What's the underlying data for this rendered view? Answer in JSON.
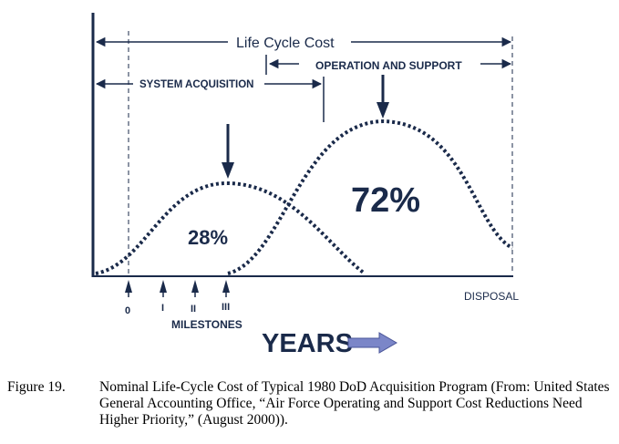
{
  "diagram": {
    "life_cycle_label": "Life Cycle Cost",
    "operation_label": "OPERATION AND SUPPORT",
    "acquisition_label": "SYSTEM ACQUISITION",
    "left_percent": "28%",
    "right_percent": "72%",
    "milestone_ticks": [
      "0",
      "I",
      "II",
      "III"
    ],
    "milestones_label": "MILESTONES",
    "disposal_label": "DISPOSAL",
    "years_label": "YEARS",
    "colors": {
      "ink": "#1a2a4a",
      "years_arrow": "#7b86c8"
    }
  },
  "caption": {
    "number": "Figure 19.",
    "text": "Nominal Life-Cycle Cost of Typical 1980 DoD Acquisition Program (From: United States General Accounting Office, “Air Force Operating and Support Cost Reductions Need Higher Priority,” (August 2000))."
  }
}
